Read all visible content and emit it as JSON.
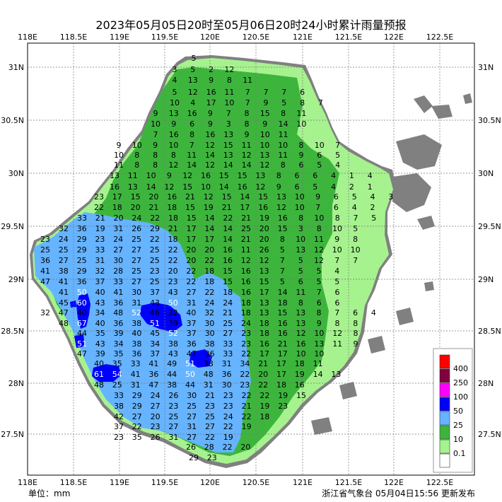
{
  "title": "2023年05月05日20时至05月06日20时24小时累计雨量预报",
  "footer": {
    "unit": "单位：mm",
    "issuer": "浙江省气象台 05月04日15:56 更新发布"
  },
  "axes": {
    "lon_ticks": [
      "118E",
      "118.5E",
      "119E",
      "119.5E",
      "120E",
      "120.5E",
      "121E",
      "121.5E",
      "122E",
      "122.5E"
    ],
    "lat_ticks": [
      "31N",
      "30.5N",
      "30N",
      "29.5N",
      "29N",
      "28.5N",
      "28N",
      "27.5N"
    ]
  },
  "legend": {
    "items": [
      {
        "label": "400",
        "color": "#ff0000"
      },
      {
        "label": "250",
        "color": "#800040"
      },
      {
        "label": "100",
        "color": "#ff00ff"
      },
      {
        "label": "50",
        "color": "#0000ff"
      },
      {
        "label": "25",
        "color": "#66b3ff"
      },
      {
        "label": "10",
        "color": "#3db53d"
      },
      {
        "label": "0.1",
        "color": "#a6f28f"
      },
      {
        "label": "",
        "color": "#ffffff"
      }
    ]
  },
  "colors": {
    "land_gray": "#808080",
    "light_green": "#a6f28f",
    "green": "#3db53d",
    "light_blue": "#66b3ff",
    "blue": "#0000ff"
  },
  "grid_values": {
    "rows": [
      [
        "5"
      ],
      [
        "3",
        "5",
        "2",
        "12"
      ],
      [
        "4",
        "13",
        "9",
        "8",
        "11"
      ],
      [
        "5",
        "12",
        "16",
        "11",
        "7",
        "7",
        "7",
        "6"
      ],
      [
        "10",
        "4",
        "17",
        "10",
        "7",
        "9",
        "5",
        "8",
        "7"
      ],
      [
        "9",
        "13",
        "16",
        "9",
        "7",
        "8",
        "15",
        "8",
        "11"
      ],
      [
        "10",
        "9",
        "6",
        "9",
        "3",
        "8",
        "9",
        "14",
        "10"
      ],
      [
        "7",
        "16",
        "8",
        "16",
        "13",
        "9",
        "10",
        "11"
      ],
      [
        "9",
        "10",
        "9",
        "10",
        "7",
        "12",
        "15",
        "11",
        "10",
        "10",
        "8",
        "10",
        "7"
      ],
      [
        "10",
        "8",
        "8",
        "8",
        "11",
        "14",
        "13",
        "12",
        "13",
        "11",
        "9",
        "6",
        "5"
      ],
      [
        "11",
        "8",
        "8",
        "12",
        "14",
        "12",
        "14",
        "14",
        "12",
        "8",
        "6",
        "5",
        "4"
      ],
      [
        "13",
        "11",
        "10",
        "9",
        "12",
        "16",
        "15",
        "15",
        "13",
        "8",
        "6",
        "6",
        "4",
        "1",
        "4"
      ],
      [
        "16",
        "13",
        "14",
        "12",
        "15",
        "10",
        "14",
        "16",
        "12",
        "9",
        "6",
        "5",
        "4",
        "2",
        "1"
      ],
      [
        "23",
        "17",
        "15",
        "20",
        "16",
        "21",
        "12",
        "15",
        "14",
        "15",
        "13",
        "10",
        "9",
        "6",
        "5",
        "4",
        "3"
      ],
      [
        "22",
        "18",
        "20",
        "21",
        "18",
        "15",
        "19",
        "21",
        "17",
        "16",
        "12",
        "10",
        "7",
        "6",
        "4",
        "2"
      ],
      [
        "33",
        "21",
        "20",
        "24",
        "22",
        "18",
        "15",
        "14",
        "22",
        "21",
        "19",
        "16",
        "8",
        "10",
        "8",
        "7",
        "5"
      ],
      [
        "32",
        "36",
        "19",
        "31",
        "26",
        "29",
        "21",
        "17",
        "14",
        "14",
        "25",
        "20",
        "15",
        "3",
        "8",
        "10",
        "5"
      ],
      [
        "23",
        "24",
        "29",
        "23",
        "24",
        "25",
        "22",
        "18",
        "17",
        "17",
        "14",
        "21",
        "20",
        "8",
        "10",
        "11",
        "9",
        "8"
      ],
      [
        "25",
        "25",
        "29",
        "33",
        "27",
        "27",
        "25",
        "22",
        "20",
        "20",
        "16",
        "11",
        "26",
        "5",
        "13",
        "12",
        "10",
        "10"
      ],
      [
        "36",
        "27",
        "25",
        "31",
        "30",
        "27",
        "25",
        "22",
        "20",
        "22",
        "16",
        "12",
        "12",
        "7",
        "5",
        "12",
        "7",
        "7"
      ],
      [
        "41",
        "38",
        "29",
        "32",
        "28",
        "25",
        "23",
        "20",
        "22",
        "18",
        "15",
        "16",
        "13",
        "7",
        "5",
        "5",
        "4"
      ],
      [
        "47",
        "41",
        "36",
        "37",
        "33",
        "27",
        "25",
        "23",
        "22",
        "18",
        "15",
        "16",
        "15",
        "5",
        "6",
        "5",
        "5"
      ],
      [
        "41",
        "50",
        "40",
        "41",
        "30",
        "37",
        "43",
        "27",
        "22",
        "18",
        "16",
        "17",
        "14",
        "11",
        "7",
        "6"
      ],
      [
        "45",
        "60",
        "43",
        "36",
        "31",
        "43",
        "50",
        "31",
        "24",
        "24",
        "18",
        "13",
        "18",
        "8",
        "6",
        "6"
      ],
      [
        "32",
        "47",
        "40",
        "34",
        "48",
        "52",
        "46",
        "32",
        "40",
        "32",
        "21",
        "18",
        "13",
        "15",
        "13",
        "8",
        "7",
        "6",
        "4"
      ],
      [
        "48",
        "67",
        "40",
        "36",
        "38",
        "51",
        "39",
        "37",
        "30",
        "25",
        "24",
        "18",
        "16",
        "13",
        "9",
        "8",
        "8"
      ],
      [
        "44",
        "35",
        "39",
        "40",
        "45",
        "52",
        "37",
        "30",
        "27",
        "23",
        "18",
        "16",
        "12",
        "10",
        "12",
        "8"
      ],
      [
        "51",
        "43",
        "34",
        "38",
        "34",
        "38",
        "36",
        "38",
        "33",
        "23",
        "16",
        "21",
        "16",
        "13",
        "11",
        "9"
      ],
      [
        "47",
        "39",
        "35",
        "36",
        "37",
        "43",
        "47",
        "36",
        "33",
        "22",
        "17",
        "17",
        "10",
        "10"
      ],
      [
        "40",
        "35",
        "33",
        "41",
        "49",
        "51",
        "38",
        "31",
        "34",
        "21",
        "17",
        "18",
        "11"
      ],
      [
        "61",
        "54",
        "41",
        "36",
        "44",
        "50",
        "48",
        "36",
        "22",
        "20",
        "17",
        "19",
        "14",
        "13"
      ],
      [
        "48",
        "25",
        "31",
        "47",
        "38",
        "44",
        "31",
        "30",
        "23",
        "22",
        "18",
        "16"
      ],
      [
        "33",
        "29",
        "24",
        "26",
        "30",
        "21",
        "23",
        "22",
        "22",
        "19",
        "15"
      ],
      [
        "38",
        "29",
        "27",
        "23",
        "25",
        "23",
        "23",
        "21",
        "19",
        "23"
      ],
      [
        "42",
        "27",
        "20",
        "25",
        "27",
        "25",
        "24",
        "22",
        "18"
      ],
      [
        "37",
        "22",
        "23",
        "27",
        "31",
        "27",
        "22",
        "19"
      ],
      [
        "23",
        "35",
        "26",
        "31",
        "27",
        "22",
        "19"
      ],
      [
        "26",
        "28",
        "22",
        "20"
      ],
      [
        "29",
        "23"
      ]
    ]
  }
}
